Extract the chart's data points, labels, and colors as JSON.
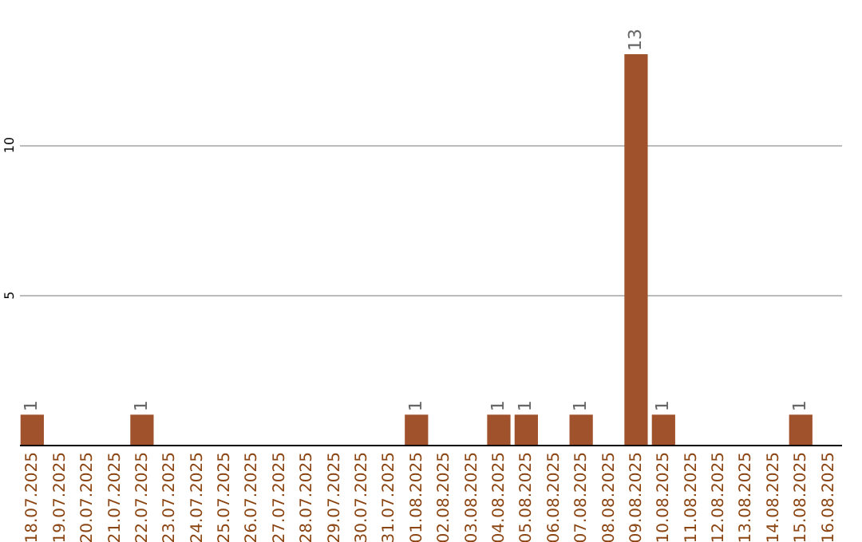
{
  "chart_data": {
    "type": "bar",
    "categories": [
      "18.07.2025",
      "19.07.2025",
      "20.07.2025",
      "21.07.2025",
      "22.07.2025",
      "23.07.2025",
      "24.07.2025",
      "25.07.2025",
      "26.07.2025",
      "27.07.2025",
      "28.07.2025",
      "29.07.2025",
      "30.07.2025",
      "31.07.2025",
      "01.08.2025",
      "02.08.2025",
      "03.08.2025",
      "04.08.2025",
      "05.08.2025",
      "06.08.2025",
      "07.08.2025",
      "08.08.2025",
      "09.08.2025",
      "10.08.2025",
      "11.08.2025",
      "12.08.2025",
      "13.08.2025",
      "14.08.2025",
      "15.08.2025",
      "16.08.2025"
    ],
    "values": [
      1,
      0,
      0,
      0,
      1,
      0,
      0,
      0,
      0,
      0,
      0,
      0,
      0,
      0,
      1,
      0,
      0,
      1,
      1,
      0,
      1,
      0,
      13,
      1,
      0,
      0,
      0,
      0,
      1,
      0
    ],
    "value_labels": [
      "1",
      null,
      null,
      null,
      "1",
      null,
      null,
      null,
      null,
      null,
      null,
      null,
      null,
      null,
      "1",
      null,
      null,
      "1",
      "1",
      null,
      "1",
      null,
      "13",
      "1",
      null,
      null,
      null,
      null,
      "1",
      null
    ],
    "color": "#a0522d",
    "ylim": [
      0,
      13
    ],
    "yticks": [
      5,
      10
    ],
    "grid": "y"
  }
}
